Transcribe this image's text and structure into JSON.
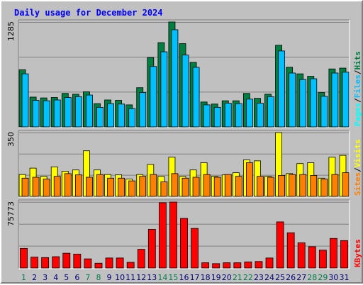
{
  "chart_data": {
    "type": "bar",
    "title": "Daily usage for December 2024",
    "categories": [
      "1",
      "2",
      "3",
      "4",
      "5",
      "6",
      "7",
      "8",
      "9",
      "10",
      "11",
      "12",
      "13",
      "14",
      "15",
      "16",
      "17",
      "18",
      "19",
      "20",
      "21",
      "22",
      "23",
      "24",
      "25",
      "26",
      "27",
      "28",
      "29",
      "30",
      "31"
    ],
    "weekend_days": [
      "1",
      "7",
      "8",
      "14",
      "15",
      "21",
      "22",
      "28",
      "29"
    ],
    "panels": [
      {
        "id": "hits-files-pages",
        "ymax": 1285,
        "ymax_label": "1285",
        "legend": [
          "Pages",
          "/",
          "Files",
          "/",
          "Hits"
        ],
        "series": [
          {
            "name": "Hits",
            "color": "#008040",
            "values": [
              700,
              365,
              355,
              360,
              410,
              400,
              430,
              285,
              330,
              325,
              270,
              480,
              850,
              1032,
              1285,
              1020,
              790,
              305,
              280,
              320,
              320,
              410,
              350,
              400,
              1000,
              730,
              650,
              620,
              420,
              710,
              720
            ]
          },
          {
            "name": "Files",
            "color": "#00c0ff",
            "values": [
              650,
              325,
              320,
              330,
              360,
              370,
              390,
              240,
              285,
              280,
              225,
              420,
              740,
              920,
              1190,
              880,
              730,
              270,
              240,
              290,
              285,
              340,
              290,
              370,
              930,
              660,
              580,
              590,
              375,
              660,
              670
            ]
          },
          {
            "name": "Pages",
            "color": "#00ffff",
            "values": []
          }
        ]
      },
      {
        "id": "visits-sites",
        "ymax": 350,
        "ymax_label": "350",
        "legend": [
          "Sites",
          "/",
          "Visits"
        ],
        "series": [
          {
            "name": "Visits",
            "color": "#ffff00",
            "values": [
              120,
              155,
              110,
              162,
              138,
              145,
              250,
              145,
              120,
              118,
              95,
              120,
              175,
              110,
              215,
              110,
              145,
              185,
              110,
              118,
              130,
              200,
              195,
              110,
              350,
              125,
              180,
              185,
              100,
              215,
              225
            ]
          },
          {
            "name": "Sites",
            "color": "#ff8000",
            "values": [
              100,
              105,
              95,
              110,
              125,
              118,
              105,
              120,
              100,
              100,
              85,
              110,
              120,
              80,
              125,
              100,
              105,
              120,
              105,
              120,
              110,
              185,
              110,
              105,
              115,
              120,
              120,
              115,
              95,
              120,
              130
            ]
          }
        ]
      },
      {
        "id": "kbytes",
        "ymax": 75773,
        "ymax_label": "75773",
        "legend": [
          "KBytes"
        ],
        "series": [
          {
            "name": "KBytes",
            "color": "#ff0000",
            "values": [
              22500,
              12500,
              12000,
              13000,
              17000,
              16000,
              10500,
              5500,
              11500,
              11500,
              6500,
              21500,
              44500,
              75000,
              75773,
              57000,
              45500,
              6000,
              5000,
              6000,
              6000,
              7000,
              7500,
              11500,
              53000,
              40500,
              29000,
              24500,
              20500,
              34000,
              31500
            ]
          }
        ]
      }
    ]
  },
  "colors": {
    "title": "#0000ff",
    "weekend_label": "#00804f",
    "weekday_label": "#000080",
    "gridline": "#808080",
    "background": "#c0c0c0",
    "plot_bg": "#c0c0c0",
    "legend_separator": "#000000"
  }
}
